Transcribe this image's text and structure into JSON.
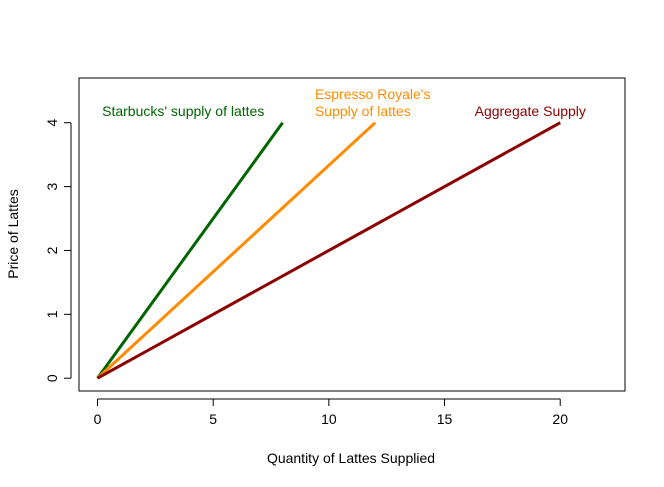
{
  "chart_data": {
    "type": "line",
    "title": "",
    "xlabel": "Quantity of Lattes Supplied",
    "ylabel": "Price of Lattes",
    "xlim": [
      -0.8,
      22.8
    ],
    "ylim": [
      -0.2,
      4.7
    ],
    "xticks": [
      0,
      5,
      10,
      15,
      20
    ],
    "yticks": [
      0,
      1,
      2,
      3,
      4
    ],
    "grid": false,
    "legend": "none",
    "series": [
      {
        "name": "Starbucks' supply of lattes",
        "label_lines": [
          "Starbucks' supply of lattes"
        ],
        "color": "#006400",
        "x": [
          0,
          8
        ],
        "y": [
          0,
          4
        ],
        "label_at": [
          0.2,
          4.2
        ]
      },
      {
        "name": "Espresso Royale's Supply of lattes",
        "label_lines": [
          "Espresso Royale's",
          "Supply of lattes"
        ],
        "color": "#FF8C00",
        "x": [
          0,
          12
        ],
        "y": [
          0,
          4
        ],
        "label_at": [
          9.4,
          4.2
        ]
      },
      {
        "name": "Aggregate Supply",
        "label_lines": [
          "Aggregate Supply"
        ],
        "color": "#8B0000",
        "x": [
          0,
          20
        ],
        "y": [
          0,
          4
        ],
        "label_at": [
          16.3,
          4.2
        ]
      }
    ]
  }
}
